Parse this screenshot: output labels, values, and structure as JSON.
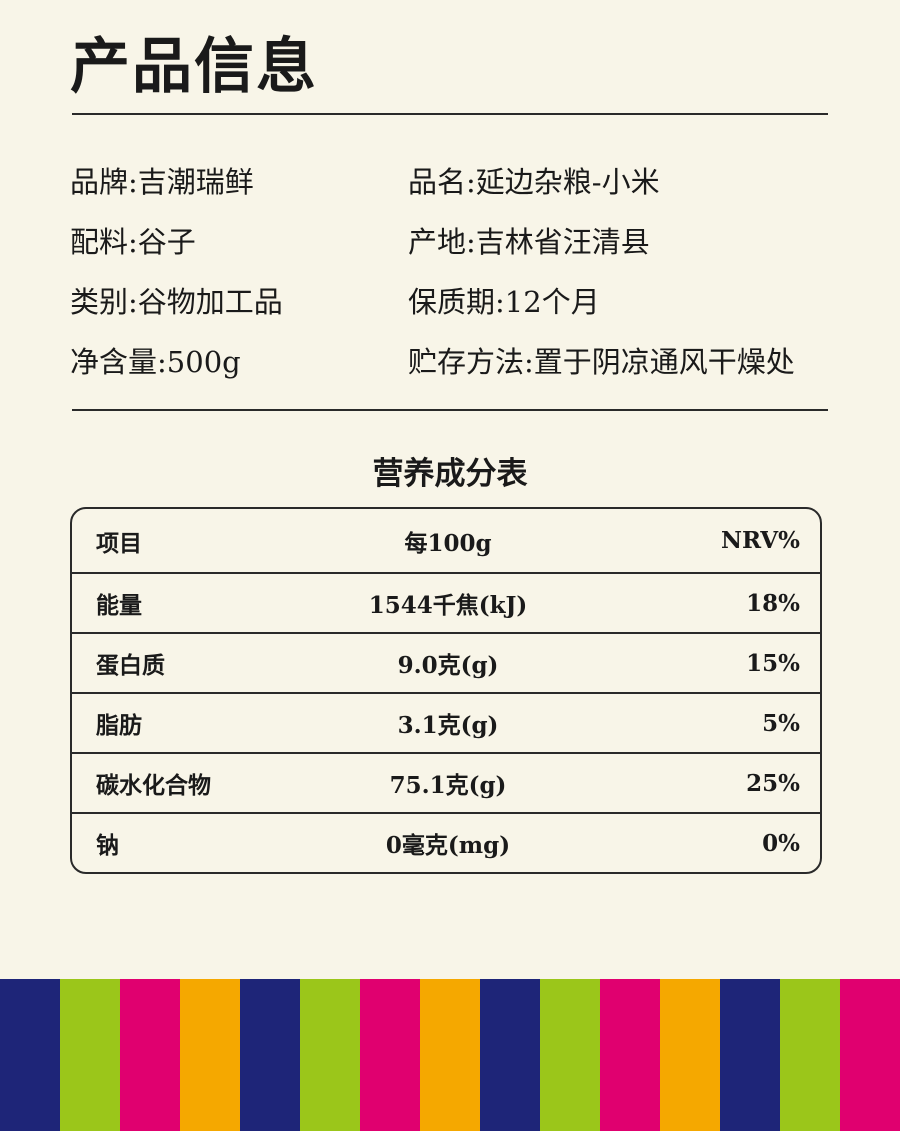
{
  "header": {
    "title": "产品信息"
  },
  "info": [
    [
      {
        "label": "品牌",
        "value": "吉潮瑞鲜"
      },
      {
        "label": "品名",
        "value": "延边杂粮-小米"
      }
    ],
    [
      {
        "label": "配料",
        "value": "谷子"
      },
      {
        "label": "产地",
        "value": "吉林省汪清县"
      }
    ],
    [
      {
        "label": "类别",
        "value": "谷物加工品"
      },
      {
        "label": "保质期",
        "value": "12个月"
      }
    ],
    [
      {
        "label": "净含量",
        "value": "500g"
      },
      {
        "label": "贮存方法",
        "value": "置于阴凉通风干燥处"
      }
    ]
  ],
  "nutrition": {
    "title": "营养成分表",
    "headers": [
      "项目",
      "每100g",
      "NRV%"
    ],
    "rows": [
      [
        "能量",
        "1544千焦(kJ)",
        "18%"
      ],
      [
        "蛋白质",
        "9.0克(g)",
        "15%"
      ],
      [
        "脂肪",
        "3.1克(g)",
        "5%"
      ],
      [
        "碳水化合物",
        "75.1克(g)",
        "25%"
      ],
      [
        "钠",
        "0毫克(mg)",
        "0%"
      ]
    ]
  },
  "colors": {
    "background": "#f8f5e8",
    "stripes": [
      "#1e2578",
      "#9bc61a",
      "#e0006f",
      "#f5a800"
    ]
  }
}
